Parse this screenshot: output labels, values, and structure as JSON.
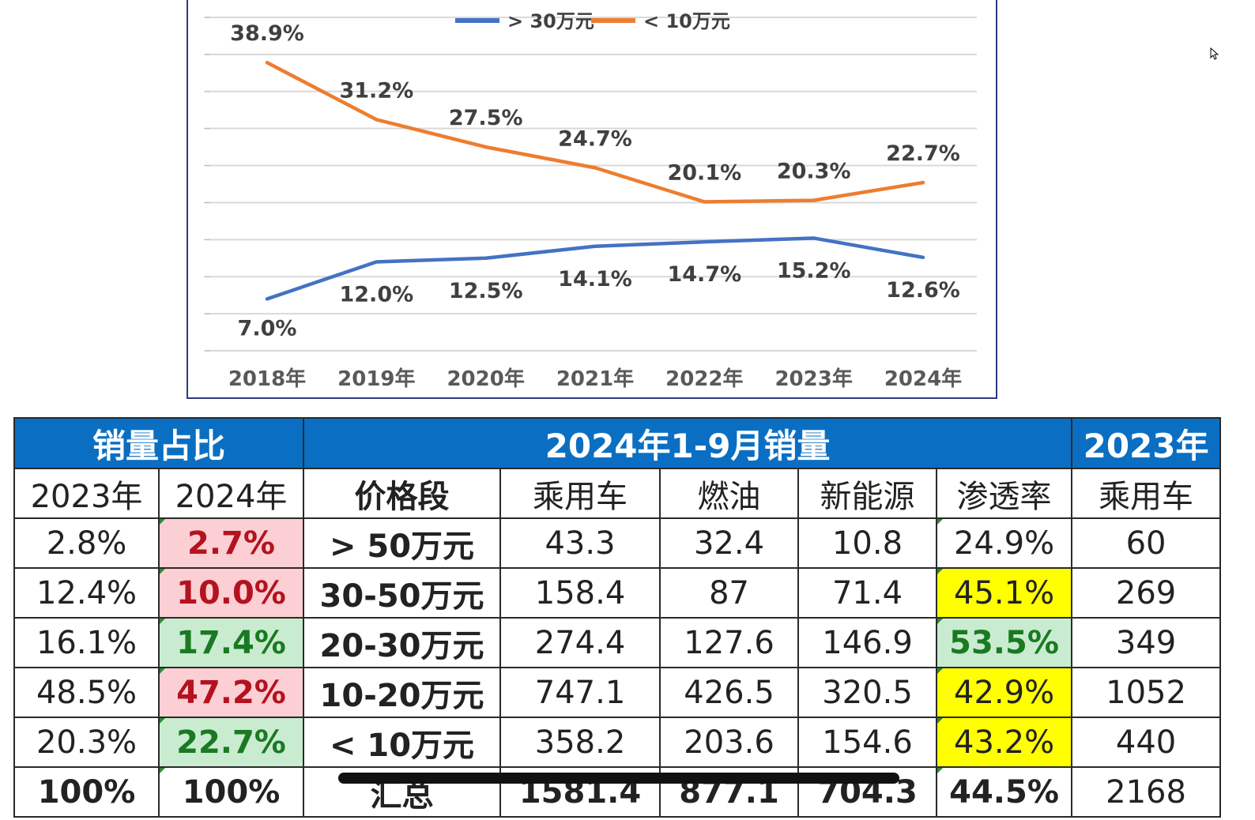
{
  "chart_data": {
    "type": "line",
    "categories": [
      "2018年",
      "2019年",
      "2020年",
      "2021年",
      "2022年",
      "2023年",
      "2024年"
    ],
    "series": [
      {
        "name": "> 30万元",
        "color": "#4472c4",
        "values": [
          7.0,
          12.0,
          12.5,
          14.1,
          14.7,
          15.2,
          12.6
        ],
        "labels": [
          "7.0%",
          "12.0%",
          "12.5%",
          "14.1%",
          "14.7%",
          "15.2%",
          "12.6%"
        ]
      },
      {
        "name": "< 10万元",
        "color": "#ed7d31",
        "values": [
          38.9,
          31.2,
          27.5,
          24.7,
          20.1,
          20.3,
          22.7
        ],
        "labels": [
          "38.9%",
          "31.2%",
          "27.5%",
          "24.7%",
          "20.1%",
          "20.3%",
          "22.7%"
        ]
      }
    ],
    "ylim": [
      0,
      45
    ],
    "grid": true,
    "legend": "top-center"
  },
  "table": {
    "header": {
      "share": "销量占比",
      "sales": "2024年1-9月销量",
      "y2023": "2023年"
    },
    "columns": [
      "2023年",
      "2024年",
      "价格段",
      "乘用车",
      "燃油",
      "新能源",
      "渗透率",
      "乘用车"
    ],
    "rows": [
      {
        "s2023": "2.8%",
        "s2024": "2.7%",
        "seg": "> 50万元",
        "pv": "43.3",
        "fuel": "32.4",
        "nev": "10.8",
        "pen": "24.9%",
        "pv2023": "60"
      },
      {
        "s2023": "12.4%",
        "s2024": "10.0%",
        "seg": "30-50万元",
        "pv": "158.4",
        "fuel": "87",
        "nev": "71.4",
        "pen": "45.1%",
        "pv2023": "269"
      },
      {
        "s2023": "16.1%",
        "s2024": "17.4%",
        "seg": "20-30万元",
        "pv": "274.4",
        "fuel": "127.6",
        "nev": "146.9",
        "pen": "53.5%",
        "pv2023": "349"
      },
      {
        "s2023": "48.5%",
        "s2024": "47.2%",
        "seg": "10-20万元",
        "pv": "747.1",
        "fuel": "426.5",
        "nev": "320.5",
        "pen": "42.9%",
        "pv2023": "1052"
      },
      {
        "s2023": "20.3%",
        "s2024": "22.7%",
        "seg": "< 10万元",
        "pv": "358.2",
        "fuel": "203.6",
        "nev": "154.6",
        "pen": "43.2%",
        "pv2023": "440"
      },
      {
        "s2023": "100%",
        "s2024": "100%",
        "seg": "汇总",
        "pv": "1581.4",
        "fuel": "877.1",
        "nev": "704.3",
        "pen": "44.5%",
        "pv2023": "2168"
      }
    ]
  }
}
